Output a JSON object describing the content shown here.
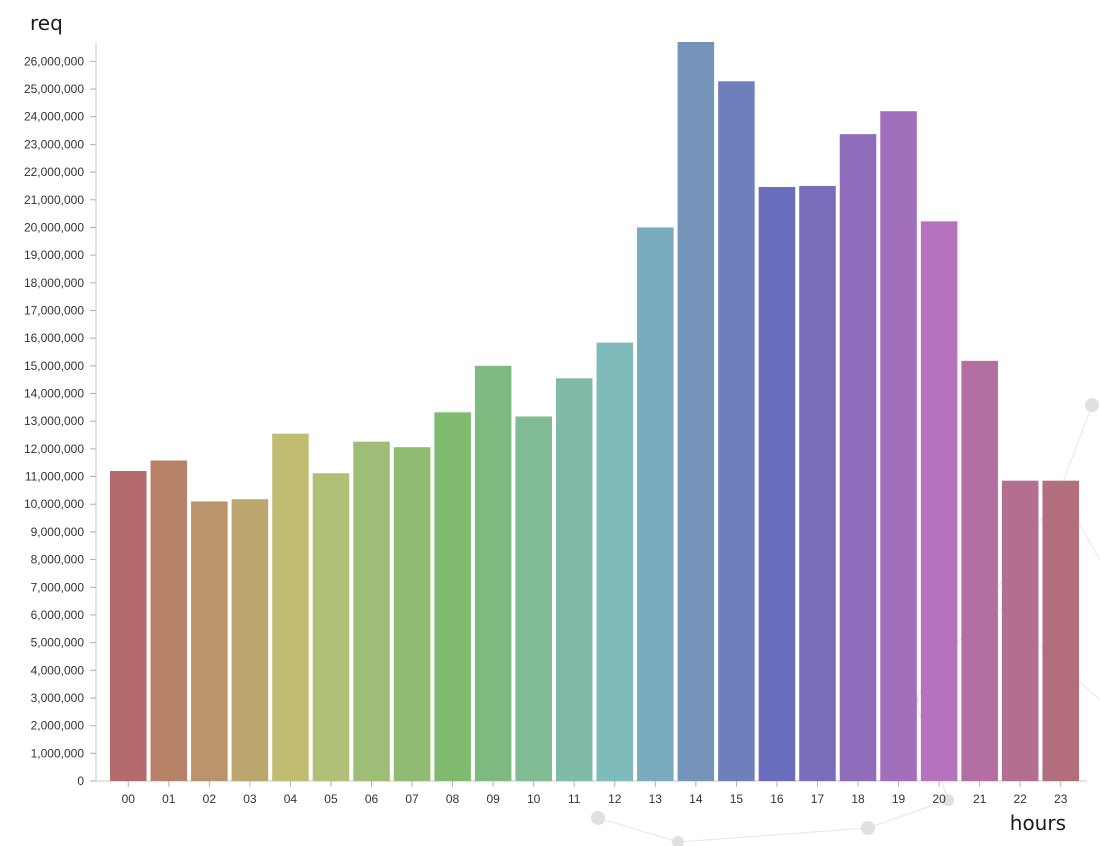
{
  "chart_data": {
    "type": "bar",
    "title": "",
    "xlabel": "hours",
    "ylabel": "req",
    "categories": [
      "00",
      "01",
      "02",
      "03",
      "04",
      "05",
      "06",
      "07",
      "08",
      "09",
      "10",
      "11",
      "12",
      "13",
      "14",
      "15",
      "16",
      "17",
      "18",
      "19",
      "20",
      "21",
      "22",
      "23"
    ],
    "values": [
      11200000,
      11580000,
      10100000,
      10180000,
      12550000,
      11120000,
      12260000,
      12060000,
      13320000,
      15000000,
      13170000,
      14550000,
      15840000,
      20000000,
      26700000,
      25280000,
      21460000,
      21500000,
      23370000,
      24200000,
      20220000,
      15180000,
      10850000,
      10850000
    ],
    "colors": [
      "#b56b6b",
      "#b78268",
      "#bb946b",
      "#bba76e",
      "#c0bd73",
      "#b1c078",
      "#9fbd76",
      "#8fbb72",
      "#7fba6e",
      "#7fbb80",
      "#80bc94",
      "#7fbba8",
      "#7fbbbb",
      "#7aaabd",
      "#7495b9",
      "#6f7fbb",
      "#6a6cbd",
      "#7a6dbb",
      "#8f6dbb",
      "#a16fbb",
      "#b673bd",
      "#b36ea2",
      "#b36e90",
      "#b36e7d"
    ],
    "ylim": [
      0,
      26700000
    ],
    "y_tick_step": 1000000,
    "grid": false,
    "legend": "none"
  }
}
